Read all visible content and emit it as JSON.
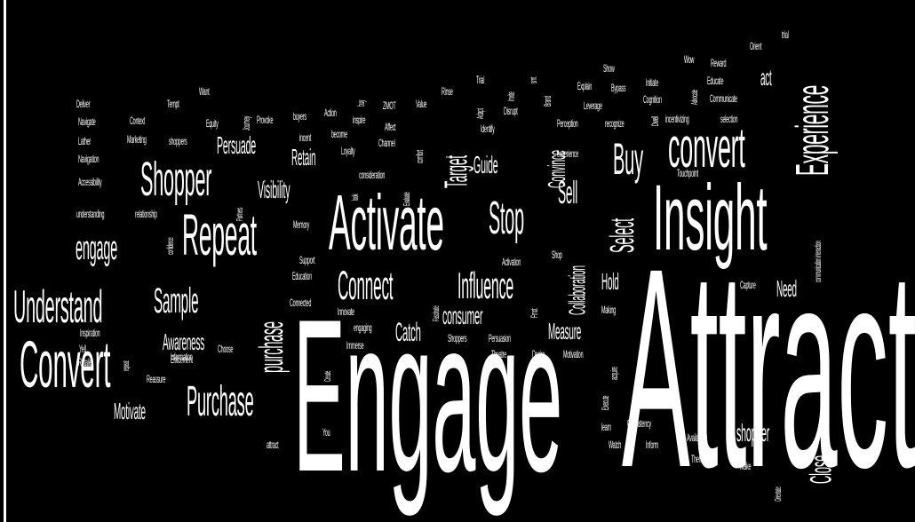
{
  "words": [
    "Attract",
    "Engage",
    "Insight",
    "Activate",
    "Convert",
    "Repeat",
    "Understand",
    "Purchase",
    "Shopper",
    "convert",
    "Experience",
    "Buy",
    "Stop",
    "Connect",
    "Influence",
    "Sample",
    "engage",
    "purchase",
    "Select",
    "Target",
    "Close",
    "Sell",
    "Persuade",
    "Visibility",
    "Awareness",
    "Motivate",
    "Catch",
    "consumer",
    "Measure",
    "Guide",
    "Convince",
    "Collaboration",
    "Retain",
    "Hold",
    "Need",
    "shopper",
    "act",
    "Wow",
    "Reward",
    "Educate",
    "Communicate",
    "Initiate",
    "Advocate",
    "Explain",
    "Show",
    "Bypass",
    "Leverage",
    "Perception",
    "recognize",
    "Dwell",
    "incentivizing",
    "selection",
    "Orient",
    "trial",
    "Cognition",
    "smt",
    "Invite",
    "Adapt",
    "Disrupt",
    "Identify",
    "Trial",
    "Rinse",
    "Brand",
    "Value",
    "ZMOT",
    "Affect",
    "Channel",
    "comfort",
    "inspire",
    "buy",
    "Action",
    "become",
    "buyers",
    "Loyalty",
    "incent",
    "Provoke",
    "Journey",
    "Equity",
    "Want",
    "Tempt",
    "Context",
    "Marketing",
    "shoppers",
    "Deliver",
    "Navigate",
    "Lather",
    "Navigation",
    "Accessibility",
    "understanding",
    "relationship",
    "confidence",
    "Partners",
    "Memory",
    "consideration",
    "look",
    "Evaluate",
    "experience",
    "Touchpoint",
    "communication interaction",
    "Support",
    "Education",
    "Connected",
    "Innovate",
    "engaging",
    "Immerse",
    "Create",
    "You",
    "attract",
    "Fascinate",
    "Activation",
    "Shop",
    "Fmot",
    "Making",
    "acquire",
    "Shoppers",
    "Persuasion",
    "Theatre",
    "Desire",
    "Motivation",
    "Execute",
    "learn",
    "Watch",
    "Inform",
    "Consistency",
    "Availability",
    "Them",
    "Make",
    "Orientate",
    "Capture",
    "Inspiration",
    "Yell",
    "repeat",
    "Information",
    "Enticement",
    "Choose",
    "Reassure",
    "Retailer"
  ]
}
